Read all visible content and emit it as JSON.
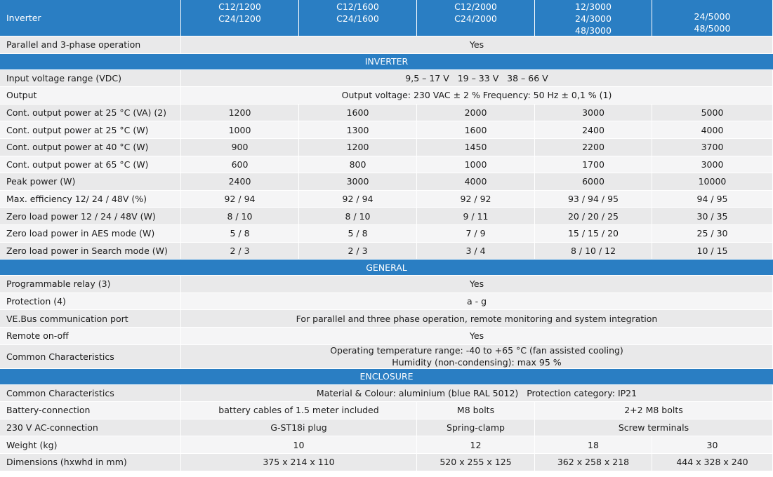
{
  "header": {
    "label": "Inverter",
    "models": [
      [
        "C12/1200",
        "C24/1200"
      ],
      [
        "C12/1600",
        "C24/1600"
      ],
      [
        "C12/2000",
        "C24/2000"
      ],
      [
        "12/3000",
        "24/3000",
        "48/3000"
      ],
      [
        "24/5000",
        "48/5000"
      ]
    ]
  },
  "rows": [
    {
      "label": "Parallel and 3-phase operation",
      "values": [
        "Yes"
      ]
    },
    {
      "section": "INVERTER"
    },
    {
      "label": "Input voltage range (VDC)",
      "values": [
        "9,5 – 17 V   19 – 33 V   38 – 66 V"
      ]
    },
    {
      "label": "Output",
      "values": [
        "Output voltage: 230 VAC ± 2 % Frequency: 50 Hz ± 0,1 % (1)"
      ]
    },
    {
      "label": "Cont. output power at 25 °C (VA) (2)",
      "values": [
        "1200",
        "1600",
        "2000",
        "3000",
        "5000"
      ]
    },
    {
      "label": "Cont. output power at 25 °C (W)",
      "values": [
        "1000",
        "1300",
        "1600",
        "2400",
        "4000"
      ]
    },
    {
      "label": "Cont. output power at 40 °C (W)",
      "values": [
        "900",
        "1200",
        "1450",
        "2200",
        "3700"
      ]
    },
    {
      "label": "Cont. output power at 65 °C (W)",
      "values": [
        "600",
        "800",
        "1000",
        "1700",
        "3000"
      ]
    },
    {
      "label": "Peak power (W)",
      "values": [
        "2400",
        "3000",
        "4000",
        "6000",
        "10000"
      ]
    },
    {
      "label": "Max. efficiency 12/ 24 / 48V (%)",
      "values": [
        "92 / 94",
        "92 / 94",
        "92 / 92",
        "93 / 94 / 95",
        "94 / 95"
      ]
    },
    {
      "label": "Zero load power 12 / 24 / 48V (W)",
      "values": [
        "8 / 10",
        "8 / 10",
        "9 / 11",
        "20 / 20 / 25",
        "30 / 35"
      ]
    },
    {
      "label": "Zero load power in AES mode (W)",
      "values": [
        "5 / 8",
        "5 / 8",
        "7 / 9",
        "15 / 15 / 20",
        "25 / 30"
      ]
    },
    {
      "label": "Zero load power in Search mode (W)",
      "values": [
        "2 / 3",
        "2 / 3",
        "3 / 4",
        "8 / 10 / 12",
        "10 / 15"
      ]
    },
    {
      "section": "GENERAL"
    },
    {
      "label": "Programmable relay (3)",
      "values": [
        "Yes"
      ]
    },
    {
      "label": "Protection (4)",
      "values": [
        "a - g"
      ]
    },
    {
      "label": "VE.Bus communication port",
      "values": [
        "For parallel and three phase operation, remote monitoring and system integration"
      ]
    },
    {
      "label": "Remote on-off",
      "values": [
        "Yes"
      ]
    },
    {
      "label": "Common Characteristics",
      "values": [
        [
          "Operating temperature range: -40 to +65 °C (fan assisted cooling)",
          "Humidity (non-condensing): max 95 %"
        ]
      ]
    },
    {
      "section": "ENCLOSURE"
    },
    {
      "label": "Common Characteristics",
      "values": [
        "Material & Colour: aluminium (blue RAL 5012)   Protection category: IP21"
      ]
    },
    {
      "label": "Battery-connection",
      "values": [
        "battery cables of 1.5 meter included",
        "M8 bolts",
        "2+2 M8 bolts"
      ]
    },
    {
      "label": "230 V AC-connection",
      "values": [
        "G-ST18i plug",
        "Spring-clamp",
        "Screw terminals"
      ]
    },
    {
      "label": "Weight (kg)",
      "values": [
        "10",
        "12",
        "18",
        "30"
      ]
    },
    {
      "label": "Dimensions (hxwhd in mm)",
      "values": [
        "375 x 214 x 110",
        "520 x 255 x 125",
        "362 x 258 x 218",
        "444 x 328 x 240"
      ]
    }
  ]
}
